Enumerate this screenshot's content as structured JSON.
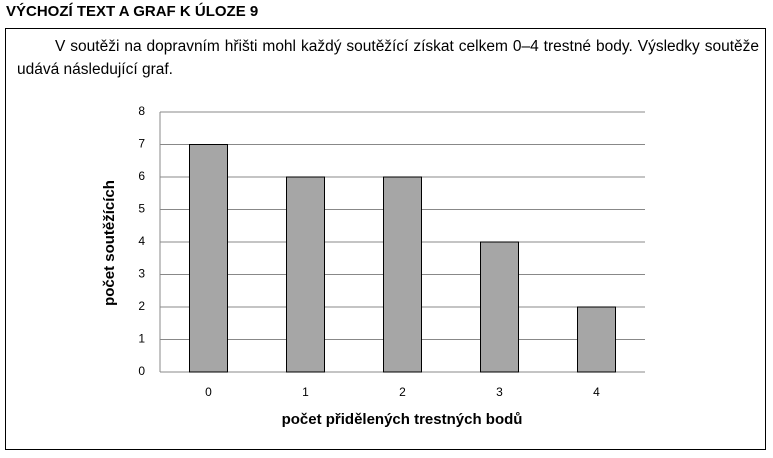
{
  "header": "VÝCHOZÍ TEXT A GRAF K ÚLOZE 9",
  "text": "V soutěži na dopravním hřišti mohl každý soutěžící získat celkem 0–4 trestné body. Výsledky soutěže udává následující graf.",
  "chart_data": {
    "type": "bar",
    "categories": [
      "0",
      "1",
      "2",
      "3",
      "4"
    ],
    "values": [
      7,
      6,
      6,
      4,
      2
    ],
    "color": "#a6a6a6",
    "xlabel": "počet přidělených trestných bodů",
    "ylabel": "počet soutěžících",
    "ylim": [
      0,
      8
    ],
    "yticks": [
      0,
      1,
      2,
      3,
      4,
      5,
      6,
      7,
      8
    ],
    "grid": true
  }
}
